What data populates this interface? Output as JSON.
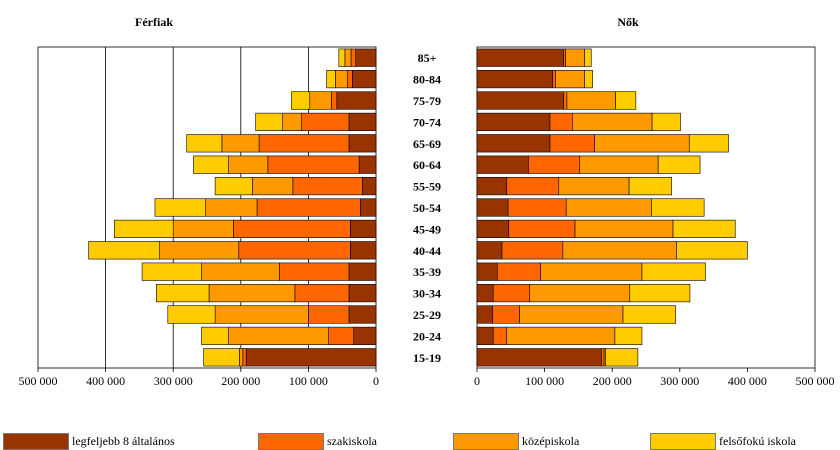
{
  "chart_data": {
    "type": "bar",
    "orientation": "horizontal",
    "stacked": true,
    "categories": [
      "85+",
      "80-84",
      "75-79",
      "70-74",
      "65-69",
      "60-64",
      "55-59",
      "50-54",
      "45-49",
      "40-44",
      "35-39",
      "30-34",
      "25-29",
      "20-24",
      "15-19"
    ],
    "series_names": [
      "legfeljebb 8 általános",
      "szakiskola",
      "középiskola",
      "felsőfokú iskola"
    ],
    "colors": [
      "#993300",
      "#ff6600",
      "#ff9900",
      "#ffcc00"
    ],
    "panels": [
      {
        "title": "Férfiak",
        "direction": "reversed",
        "xlim": [
          0,
          500000
        ],
        "xticks": [
          "500 000",
          "400 000",
          "300 000",
          "200 000",
          "100 000",
          "0"
        ],
        "grid": true,
        "series": [
          {
            "name": "legfeljebb 8 általános",
            "values": [
              30000,
              35000,
              58000,
              40000,
              40000,
              25000,
              20000,
              23000,
              38000,
              38000,
              40000,
              40000,
              40000,
              33000,
              192000
            ]
          },
          {
            "name": "szakiskola",
            "values": [
              7000,
              7000,
              8000,
              70000,
              133000,
              135000,
              103000,
              153000,
              173000,
              165000,
              103000,
              80000,
              60000,
              37000,
              5000
            ]
          },
          {
            "name": "középiskola",
            "values": [
              9000,
              18000,
              32000,
              28000,
              55000,
              58000,
              60000,
              76000,
              89000,
              117000,
              115000,
              127000,
              138000,
              148000,
              5000
            ]
          },
          {
            "name": "felsőfokú iskola",
            "values": [
              9000,
              13000,
              27000,
              40000,
              52000,
              52000,
              55000,
              75000,
              87000,
              105000,
              88000,
              78000,
              70000,
              40000,
              53000
            ]
          }
        ]
      },
      {
        "title": "Nők",
        "direction": "normal",
        "xlim": [
          0,
          500000
        ],
        "xticks": [
          "0",
          "100 000",
          "200 000",
          "300 000",
          "400 000",
          "500 000"
        ],
        "grid": false,
        "series": [
          {
            "name": "legfeljebb 8 általános",
            "values": [
              128000,
              112000,
              128000,
              108000,
              108000,
              76000,
              44000,
              46000,
              47000,
              37000,
              30000,
              24000,
              23000,
              24000,
              184000
            ]
          },
          {
            "name": "szakiskola",
            "values": [
              3000,
              4000,
              5000,
              33000,
              66000,
              76000,
              77000,
              86000,
              98000,
              90000,
              64000,
              54000,
              40000,
              20000,
              4000
            ]
          },
          {
            "name": "középiskola",
            "values": [
              28000,
              43000,
              72000,
              118000,
              140000,
              116000,
              104000,
              126000,
              145000,
              168000,
              150000,
              148000,
              153000,
              160000,
              2000
            ]
          },
          {
            "name": "felsőfokú iskola",
            "values": [
              10000,
              12000,
              30000,
              42000,
              58000,
              62000,
              63000,
              78000,
              92000,
              105000,
              94000,
              89000,
              78000,
              40000,
              48000
            ]
          }
        ]
      }
    ]
  }
}
